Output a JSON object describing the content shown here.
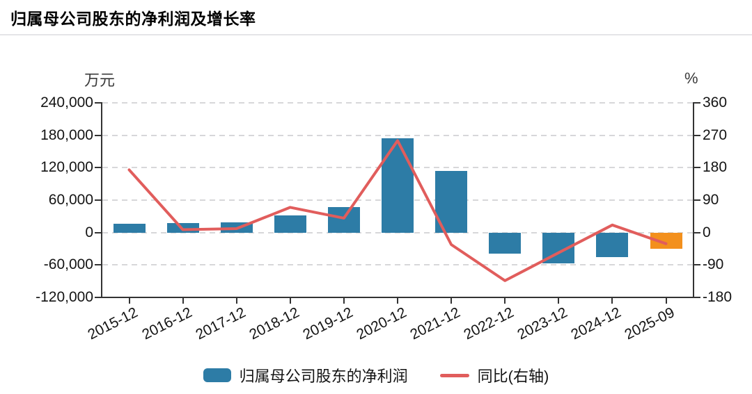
{
  "page": {
    "title": "归属母公司股东的净利润及增长率"
  },
  "chart_data": {
    "type": "bar+line",
    "title": "归属母公司股东的净利润及增长率",
    "categories": [
      "2015-12",
      "2016-12",
      "2017-12",
      "2018-12",
      "2019-12",
      "2020-12",
      "2021-12",
      "2022-12",
      "2023-12",
      "2024-12",
      "2025-09"
    ],
    "series": [
      {
        "name": "归属母公司股东的净利润",
        "type": "bar",
        "axis": "left",
        "unit": "万元",
        "color": "#2d7ca6",
        "last_value_color": "#f3901d",
        "values": [
          16500,
          18000,
          19500,
          32000,
          47500,
          174000,
          114000,
          -38500,
          -57500,
          -45500,
          -29500
        ]
      },
      {
        "name": "同比(右轴)",
        "type": "line",
        "axis": "right",
        "unit": "%",
        "color": "#e15d5c",
        "values": [
          174,
          8,
          11,
          70,
          40,
          255,
          -33.5,
          -133.5,
          -56,
          21,
          -31
        ]
      }
    ],
    "left_axis": {
      "unit": "万元",
      "min": -120000,
      "max": 240000,
      "ticks": [
        {
          "value": 240000,
          "label": "240,000"
        },
        {
          "value": 180000,
          "label": "180,000"
        },
        {
          "value": 120000,
          "label": "120,000"
        },
        {
          "value": 60000,
          "label": "60,000"
        },
        {
          "value": 0,
          "label": "0"
        },
        {
          "value": -60000,
          "label": "-60,000"
        },
        {
          "value": -120000,
          "label": "-120,000"
        }
      ]
    },
    "right_axis": {
      "unit": "%",
      "min": -180,
      "max": 360,
      "ticks": [
        {
          "value": 360,
          "label": "360"
        },
        {
          "value": 270,
          "label": "270"
        },
        {
          "value": 180,
          "label": "180"
        },
        {
          "value": 90,
          "label": "90"
        },
        {
          "value": 0,
          "label": "0"
        },
        {
          "value": -90,
          "label": "-90"
        },
        {
          "value": -180,
          "label": "-180"
        }
      ]
    },
    "grid": {
      "horizontal_dashed": true,
      "color": "#d7d7d9"
    },
    "legend_position": "bottom-center"
  },
  "colors": {
    "bar_blue": "#2d7ca6",
    "bar_highlight_orange": "#f3901d",
    "line_red": "#e15d5c",
    "axis": "#333333",
    "grid": "#d7d7d9",
    "divider": "#e4e4e7"
  }
}
